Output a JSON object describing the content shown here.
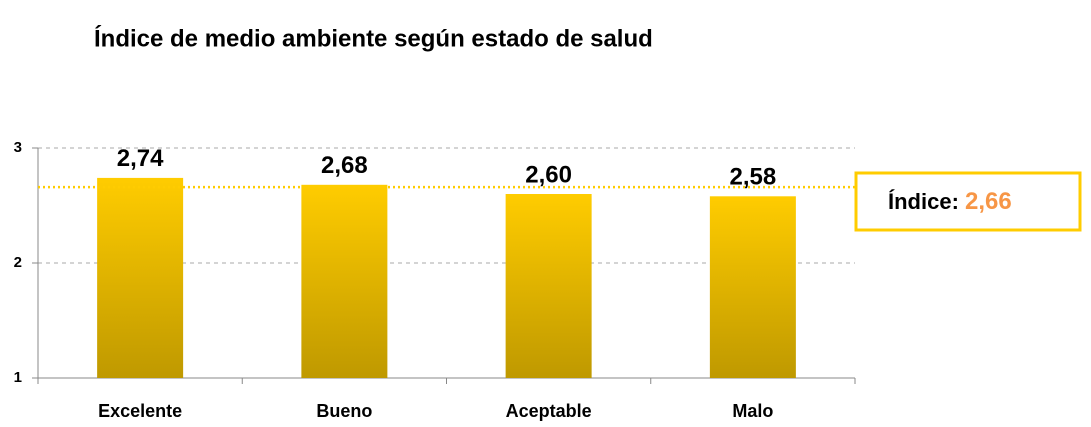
{
  "chart_data": {
    "type": "bar",
    "title": "Índice de medio ambiente según estado de salud",
    "categories": [
      "Excelente",
      "Bueno",
      "Aceptable",
      "Malo"
    ],
    "values": [
      2.74,
      2.68,
      2.6,
      2.58
    ],
    "value_labels": [
      "2,74",
      "2,68",
      "2,60",
      "2,58"
    ],
    "color": "#ffcc00",
    "ylim": [
      1,
      3
    ],
    "yticks": [
      1,
      2,
      3
    ],
    "grid": true,
    "reference": {
      "label": "Índice:",
      "value": 2.66,
      "value_label": "2,66",
      "color": "#f79646"
    }
  }
}
